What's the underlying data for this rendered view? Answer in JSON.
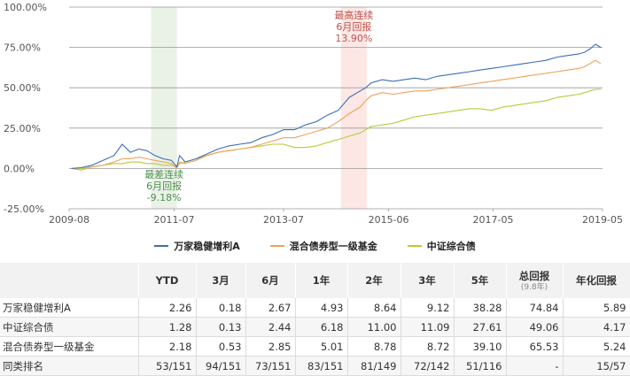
{
  "chart_data": {
    "type": "line",
    "y_ticks": [
      "100.00%",
      "75.00%",
      "50.00%",
      "25.00%",
      "0.00%",
      "-25.00%"
    ],
    "y_tick_values": [
      100,
      75,
      50,
      25,
      0,
      -25
    ],
    "ylim": [
      -25,
      100
    ],
    "x_ticks": [
      "2009-08",
      "2011-07",
      "2013-07",
      "2015-06",
      "2017-05",
      "2019-05"
    ],
    "x_tick_values": [
      2009.58,
      2011.5,
      2013.5,
      2015.42,
      2017.33,
      2019.33
    ],
    "xlim": [
      2009.58,
      2019.33
    ],
    "grid": true,
    "legend_position": "bottom",
    "series": [
      {
        "name": "万家稳健增利A",
        "color": "#3c6fb4",
        "x": [
          2009.62,
          2009.8,
          2010.0,
          2010.2,
          2010.4,
          2010.55,
          2010.7,
          2010.85,
          2011.0,
          2011.15,
          2011.3,
          2011.45,
          2011.55,
          2011.6,
          2011.7,
          2011.9,
          2012.1,
          2012.3,
          2012.5,
          2012.7,
          2012.9,
          2013.1,
          2013.3,
          2013.5,
          2013.7,
          2013.9,
          2014.1,
          2014.3,
          2014.5,
          2014.7,
          2014.9,
          2015.0,
          2015.1,
          2015.3,
          2015.5,
          2015.7,
          2015.9,
          2016.1,
          2016.3,
          2016.5,
          2016.7,
          2016.9,
          2017.1,
          2017.3,
          2017.5,
          2017.7,
          2017.9,
          2018.1,
          2018.3,
          2018.5,
          2018.7,
          2018.9,
          2019.0,
          2019.1,
          2019.2,
          2019.3
        ],
        "y": [
          0,
          0.5,
          2,
          5,
          8,
          15,
          10,
          12,
          11,
          8,
          6,
          5,
          1,
          8,
          4,
          6,
          9,
          12,
          14,
          15,
          16,
          19,
          21,
          24,
          24,
          27,
          29,
          33,
          36,
          44,
          48,
          50,
          53,
          55,
          54,
          55,
          56,
          55,
          57,
          58,
          59,
          60,
          61,
          62,
          63,
          64,
          65,
          66,
          67,
          69,
          70,
          71,
          72,
          74,
          77,
          75
        ]
      },
      {
        "name": "混合债券型一级基金",
        "color": "#f0a15a",
        "x": [
          2009.62,
          2009.8,
          2010.0,
          2010.2,
          2010.4,
          2010.55,
          2010.7,
          2010.85,
          2011.0,
          2011.15,
          2011.3,
          2011.45,
          2011.55,
          2011.6,
          2011.7,
          2011.9,
          2012.1,
          2012.3,
          2012.5,
          2012.7,
          2012.9,
          2013.1,
          2013.3,
          2013.5,
          2013.7,
          2013.9,
          2014.1,
          2014.3,
          2014.5,
          2014.7,
          2014.9,
          2015.0,
          2015.1,
          2015.3,
          2015.5,
          2015.7,
          2015.9,
          2016.1,
          2016.3,
          2016.5,
          2016.7,
          2016.9,
          2017.1,
          2017.3,
          2017.5,
          2017.7,
          2017.9,
          2018.1,
          2018.3,
          2018.5,
          2018.7,
          2018.9,
          2019.0,
          2019.1,
          2019.2,
          2019.3
        ],
        "y": [
          0,
          -1,
          1,
          2,
          4,
          6,
          6,
          7,
          6,
          5,
          4,
          3,
          0,
          4,
          3,
          5,
          8,
          10,
          11,
          12,
          13,
          15,
          17,
          19,
          19,
          21,
          23,
          25,
          29,
          34,
          38,
          42,
          45,
          47,
          46,
          47,
          48,
          48,
          49,
          50,
          51,
          52,
          53,
          54,
          55,
          56,
          57,
          58,
          59,
          60,
          61,
          62,
          63,
          65,
          67,
          65
        ]
      },
      {
        "name": "中证综合债",
        "color": "#b5cc3b",
        "x": [
          2009.62,
          2009.8,
          2010.0,
          2010.2,
          2010.4,
          2010.55,
          2010.7,
          2010.85,
          2011.0,
          2011.15,
          2011.3,
          2011.45,
          2011.55,
          2011.6,
          2011.7,
          2011.9,
          2012.1,
          2012.3,
          2012.5,
          2012.7,
          2012.9,
          2013.1,
          2013.3,
          2013.5,
          2013.7,
          2013.9,
          2014.1,
          2014.3,
          2014.5,
          2014.7,
          2014.9,
          2015.0,
          2015.1,
          2015.3,
          2015.5,
          2015.7,
          2015.9,
          2016.1,
          2016.3,
          2016.5,
          2016.7,
          2016.9,
          2017.1,
          2017.3,
          2017.5,
          2017.7,
          2017.9,
          2018.1,
          2018.3,
          2018.5,
          2018.7,
          2018.9,
          2019.0,
          2019.1,
          2019.2,
          2019.3
        ],
        "y": [
          0,
          0,
          1,
          2,
          3,
          3,
          4,
          4,
          3,
          3,
          2,
          2,
          1,
          3,
          4,
          6,
          8,
          10,
          11,
          12,
          13,
          14,
          15,
          15,
          13,
          13,
          14,
          16,
          18,
          20,
          22,
          24,
          26,
          27,
          28,
          30,
          32,
          33,
          34,
          35,
          36,
          37,
          37,
          36,
          38,
          39,
          40,
          41,
          42,
          44,
          45,
          46,
          47,
          48,
          49,
          49
        ]
      }
    ],
    "annotations": [
      {
        "lines": [
          "最高连续",
          "6月回报",
          "13.90%"
        ],
        "color": "#c0504d",
        "x_start": 2014.55,
        "x_end": 2015.02
      },
      {
        "lines": [
          "最差连续",
          "6月回报",
          "-9.18%"
        ],
        "color": "#4e8f4e",
        "x_start": 2011.08,
        "x_end": 2011.55
      }
    ]
  },
  "table": {
    "headers": [
      "",
      "YTD",
      "3月",
      "6月",
      "1年",
      "2年",
      "3年",
      "5年",
      "总回报",
      "年化回报"
    ],
    "total_sub": "(9.8年)",
    "rows": [
      [
        "万家稳健增利A",
        "2.26",
        "0.18",
        "2.67",
        "4.93",
        "8.64",
        "9.12",
        "38.28",
        "74.84",
        "5.89"
      ],
      [
        "中证综合债",
        "1.28",
        "0.13",
        "2.44",
        "6.18",
        "11.00",
        "11.09",
        "27.61",
        "49.06",
        "4.17"
      ],
      [
        "混合债券型一级基金",
        "2.18",
        "0.53",
        "2.85",
        "5.01",
        "8.78",
        "8.72",
        "39.10",
        "65.53",
        "5.24"
      ],
      [
        "同类排名",
        "53/151",
        "94/151",
        "73/151",
        "83/151",
        "81/149",
        "72/142",
        "51/116",
        "-",
        "15/57"
      ]
    ]
  }
}
